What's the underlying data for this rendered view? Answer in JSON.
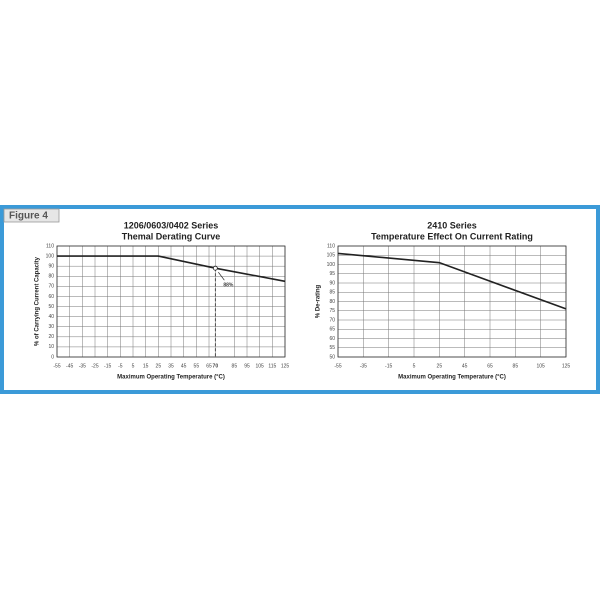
{
  "figure_label": "Figure 4",
  "chart_data": [
    {
      "type": "line",
      "title": "1206/0603/0402 Series",
      "subtitle": "Themal Derating Curve",
      "x_label": "Maximum Operating Temperature (°C)",
      "y_label": "% of Carrying Current Capacity",
      "x": [
        -55,
        25,
        70,
        125
      ],
      "values": [
        100,
        100,
        88,
        75
      ],
      "color": "#222222",
      "xlim": [
        -55,
        125
      ],
      "ylim": [
        0,
        110
      ],
      "xticks": [
        -55,
        -45,
        -35,
        -25,
        -15,
        -5,
        5,
        15,
        25,
        35,
        45,
        55,
        65,
        70,
        85,
        95,
        105,
        115,
        125
      ],
      "yticks": [
        0,
        10,
        20,
        30,
        40,
        50,
        60,
        70,
        80,
        90,
        100,
        110
      ],
      "grid": true,
      "annotations": [
        {
          "text": "88%",
          "x": 70,
          "y": 88
        }
      ]
    },
    {
      "type": "line",
      "title": "2410 Series",
      "subtitle": "Temperature Effect On Current Rating",
      "x_label": "Maximum Operating Temperature (°C)",
      "y_label": "% De-rating",
      "x": [
        -55,
        25,
        125
      ],
      "values": [
        106,
        101,
        76
      ],
      "color": "#222222",
      "xlim": [
        -55,
        125
      ],
      "ylim": [
        50,
        110
      ],
      "xticks": [
        -55,
        -35,
        -15,
        5,
        25,
        45,
        65,
        85,
        105,
        125
      ],
      "yticks": [
        50,
        55,
        60,
        65,
        70,
        75,
        80,
        85,
        90,
        95,
        100,
        105,
        110
      ],
      "grid": true
    }
  ]
}
